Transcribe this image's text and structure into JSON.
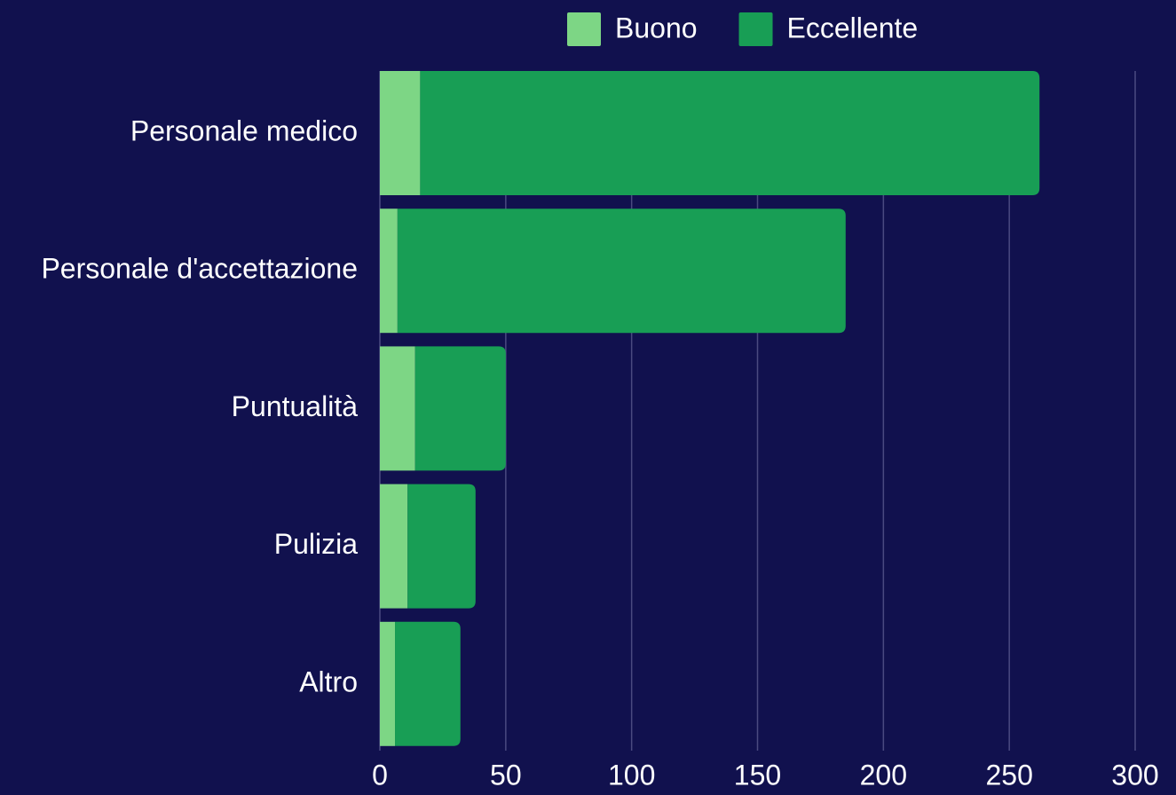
{
  "chart_data": {
    "type": "stacked-bar-horizontal",
    "categories": [
      "Personale medico",
      "Personale d'accettazione",
      "Puntualità",
      "Pulizia",
      "Altro"
    ],
    "series": [
      {
        "name": "Buono",
        "color": "#7dd685",
        "values": [
          16,
          7,
          14,
          11,
          6
        ]
      },
      {
        "name": "Eccellente",
        "color": "#189e55",
        "values": [
          246,
          178,
          36,
          27,
          26
        ]
      }
    ],
    "xlim": [
      0,
      300
    ],
    "xticks": [
      0,
      50,
      100,
      150,
      200,
      250,
      300
    ],
    "grid": true,
    "legend": "top"
  }
}
